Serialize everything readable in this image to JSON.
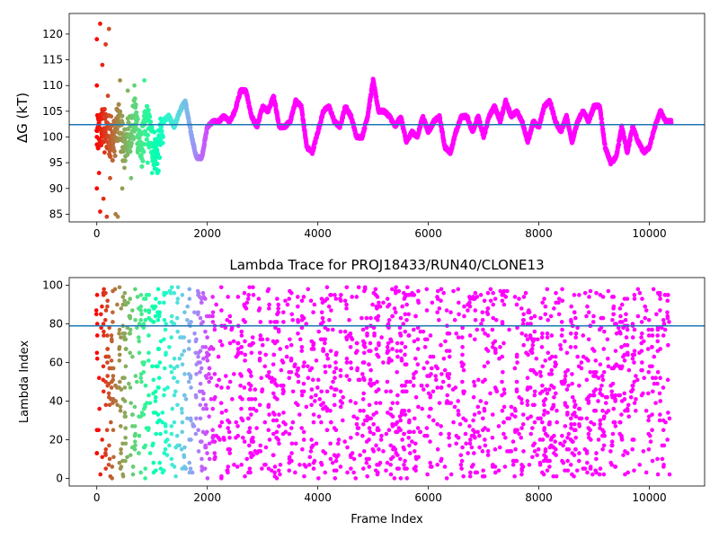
{
  "chart_data": [
    {
      "type": "scatter",
      "title": "",
      "xlabel": "",
      "ylabel": "ΔG (kT)",
      "xlim": [
        -500,
        11000
      ],
      "ylim": [
        83.5,
        124
      ],
      "xticks": [
        0,
        2000,
        4000,
        6000,
        8000,
        10000
      ],
      "xtick_labels": [
        "0",
        "2000",
        "4000",
        "6000",
        "8000",
        "10000"
      ],
      "yticks": [
        85,
        90,
        95,
        100,
        105,
        110,
        115,
        120
      ],
      "ytick_labels": [
        "85",
        "90",
        "95",
        "100",
        "105",
        "110",
        "115",
        "120"
      ],
      "reference_line": {
        "y": 102.4,
        "color": "#1f77b4"
      },
      "color_mapping": "rainbow colormap by frame index: red at frame 0, then orange, yellow-green, cyan, blue, violet for later frames",
      "x_range_of_points": [
        0,
        10400
      ],
      "trace": {
        "x": [
          0,
          100,
          200,
          300,
          400,
          500,
          600,
          700,
          800,
          900,
          1000,
          1100,
          1200,
          1300,
          1400,
          1500,
          1600,
          1700,
          1800,
          1900,
          2000,
          2100,
          2200,
          2300,
          2400,
          2500,
          2600,
          2700,
          2800,
          2900,
          3000,
          3100,
          3200,
          3300,
          3400,
          3500,
          3600,
          3700,
          3800,
          3900,
          4000,
          4100,
          4200,
          4300,
          4400,
          4500,
          4600,
          4700,
          4800,
          4900,
          5000,
          5100,
          5200,
          5300,
          5400,
          5500,
          5600,
          5700,
          5800,
          5900,
          6000,
          6100,
          6200,
          6300,
          6400,
          6500,
          6600,
          6700,
          6800,
          6900,
          7000,
          7100,
          7200,
          7300,
          7400,
          7500,
          7600,
          7700,
          7800,
          7900,
          8000,
          8100,
          8200,
          8300,
          8400,
          8500,
          8600,
          8700,
          8800,
          8900,
          9000,
          9100,
          9200,
          9300,
          9400,
          9500,
          9600,
          9700,
          9800,
          9900,
          10000,
          10100,
          10200,
          10300,
          10400
        ],
        "y": [
          100,
          102,
          101,
          99,
          103,
          98,
          101,
          104,
          97,
          103,
          99,
          96,
          103,
          104,
          102,
          105,
          107,
          101,
          96,
          96,
          102,
          103,
          103,
          104,
          103,
          105,
          109,
          109,
          104,
          102,
          106,
          105,
          108,
          102,
          102,
          103,
          107,
          106,
          98,
          97,
          101,
          105,
          106,
          103,
          102,
          106,
          104,
          100,
          100,
          104,
          111,
          105,
          105,
          104,
          102,
          104,
          99,
          101,
          100,
          104,
          101,
          103,
          104,
          98,
          97,
          101,
          104,
          104,
          101,
          104,
          100,
          104,
          106,
          103,
          107,
          104,
          105,
          103,
          99,
          103,
          102,
          106,
          107,
          103,
          101,
          104,
          99,
          103,
          105,
          103,
          106,
          106,
          98,
          95,
          96,
          102,
          97,
          102,
          99,
          97,
          98,
          102,
          105,
          103,
          103
        ]
      },
      "early_scatter": [
        {
          "x": 0,
          "y": 110
        },
        {
          "x": 0,
          "y": 100
        },
        {
          "x": 0,
          "y": 90
        },
        {
          "x": 0,
          "y": 119
        },
        {
          "x": 40,
          "y": 93
        },
        {
          "x": 60,
          "y": 85.5
        },
        {
          "x": 60,
          "y": 122
        },
        {
          "x": 100,
          "y": 114
        },
        {
          "x": 120,
          "y": 88
        },
        {
          "x": 140,
          "y": 97
        },
        {
          "x": 160,
          "y": 118
        },
        {
          "x": 180,
          "y": 84.5
        },
        {
          "x": 200,
          "y": 108
        },
        {
          "x": 220,
          "y": 121
        },
        {
          "x": 240,
          "y": 92
        },
        {
          "x": 260,
          "y": 104
        },
        {
          "x": 300,
          "y": 98
        },
        {
          "x": 340,
          "y": 85
        },
        {
          "x": 380,
          "y": 84.5
        },
        {
          "x": 420,
          "y": 111
        },
        {
          "x": 460,
          "y": 90
        },
        {
          "x": 500,
          "y": 94
        },
        {
          "x": 560,
          "y": 109
        },
        {
          "x": 620,
          "y": 92
        },
        {
          "x": 680,
          "y": 110
        },
        {
          "x": 740,
          "y": 97
        },
        {
          "x": 800,
          "y": 99
        },
        {
          "x": 860,
          "y": 111
        },
        {
          "x": 920,
          "y": 95
        },
        {
          "x": 1000,
          "y": 93
        },
        {
          "x": 1060,
          "y": 96
        }
      ]
    },
    {
      "type": "scatter",
      "title": "Lambda Trace for PROJ18433/RUN40/CLONE13",
      "xlabel": "Frame Index",
      "ylabel": "Lambda Index",
      "xlim": [
        -500,
        11000
      ],
      "ylim": [
        -4,
        104
      ],
      "xticks": [
        0,
        2000,
        4000,
        6000,
        8000,
        10000
      ],
      "xtick_labels": [
        "0",
        "2000",
        "4000",
        "6000",
        "8000",
        "10000"
      ],
      "yticks": [
        0,
        20,
        40,
        60,
        80,
        100
      ],
      "ytick_labels": [
        "0",
        "20",
        "40",
        "60",
        "80",
        "100"
      ],
      "reference_line": {
        "y": 79,
        "color": "#1f77b4"
      },
      "color_mapping": "rainbow colormap by frame index: red at frame 0, then orange, yellow-green, cyan, blue, violet for later frames",
      "x_range_of_points": [
        0,
        10400
      ],
      "value_range": [
        0,
        99
      ],
      "distribution": "lambda index hops across the full 0–99 range; points form dense vertical streaks throughout all frames"
    }
  ]
}
